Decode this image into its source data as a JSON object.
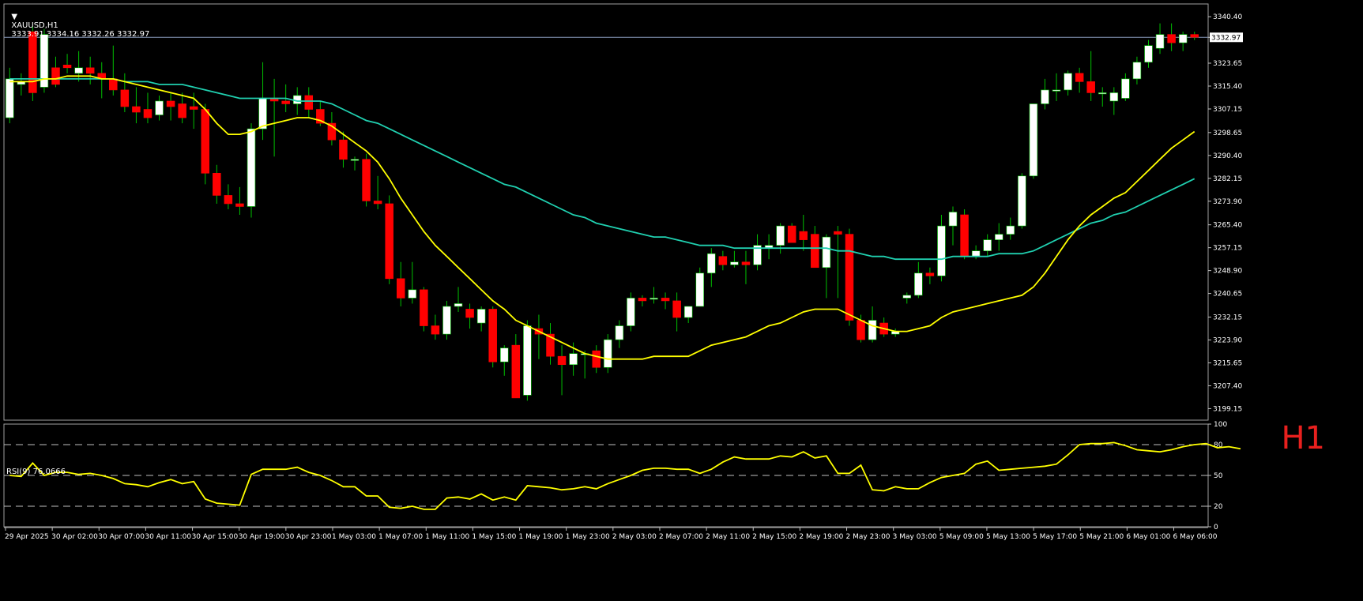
{
  "header": {
    "symbol": "XAUUSD,H1",
    "quotes": "3333.91 3334.16 3332.26 3332.97"
  },
  "rsi_header": "RSI(9) 76.0666",
  "watermark": "H1",
  "colors": {
    "background": "#000000",
    "bull_candle": "#ffffff",
    "bear_candle": "#ff0000",
    "wick": "#00c000",
    "ma_fast": "#ffff00",
    "ma_slow": "#20d0b0",
    "rsi_line": "#ffff00",
    "grid": "#c0c0c0",
    "price_line": "#8899bb"
  },
  "chart_data": [
    {
      "type": "candlestick",
      "symbol": "XAUUSD",
      "timeframe": "H1",
      "ylim": [
        3195,
        3345
      ],
      "y_ticks": [
        "3340.40",
        "3332.97",
        "3323.65",
        "3315.40",
        "3307.15",
        "3298.65",
        "3290.40",
        "3282.15",
        "3273.90",
        "3265.40",
        "3257.15",
        "3248.90",
        "3240.65",
        "3232.15",
        "3223.90",
        "3215.65",
        "3207.40",
        "3199.15"
      ],
      "current_price": "3332.97",
      "x_ticks": [
        "29 Apr 2025",
        "30 Apr 02:00",
        "30 Apr 07:00",
        "30 Apr 11:00",
        "30 Apr 15:00",
        "30 Apr 19:00",
        "30 Apr 23:00",
        "1 May 03:00",
        "1 May 07:00",
        "1 May 11:00",
        "1 May 15:00",
        "1 May 19:00",
        "1 May 23:00",
        "2 May 03:00",
        "2 May 07:00",
        "2 May 11:00",
        "2 May 15:00",
        "2 May 19:00",
        "2 May 23:00",
        "3 May 03:00",
        "5 May 09:00",
        "5 May 13:00",
        "5 May 17:00",
        "5 May 21:00",
        "6 May 01:00",
        "6 May 06:00"
      ],
      "candles": [
        {
          "o": 3304,
          "h": 3322,
          "l": 3302,
          "c": 3318
        },
        {
          "o": 3316,
          "h": 3320,
          "l": 3312,
          "c": 3317
        },
        {
          "o": 3335,
          "h": 3337,
          "l": 3310,
          "c": 3313
        },
        {
          "o": 3315,
          "h": 3336,
          "l": 3313,
          "c": 3334
        },
        {
          "o": 3322,
          "h": 3326,
          "l": 3315,
          "c": 3316
        },
        {
          "o": 3323,
          "h": 3327,
          "l": 3320,
          "c": 3322
        },
        {
          "o": 3320,
          "h": 3328,
          "l": 3317,
          "c": 3322
        },
        {
          "o": 3322,
          "h": 3326,
          "l": 3316,
          "c": 3320
        },
        {
          "o": 3320,
          "h": 3324,
          "l": 3311,
          "c": 3318
        },
        {
          "o": 3318,
          "h": 3330,
          "l": 3312,
          "c": 3314
        },
        {
          "o": 3314,
          "h": 3320,
          "l": 3306,
          "c": 3308
        },
        {
          "o": 3308,
          "h": 3315,
          "l": 3302,
          "c": 3306
        },
        {
          "o": 3307,
          "h": 3313,
          "l": 3302,
          "c": 3304
        },
        {
          "o": 3305,
          "h": 3312,
          "l": 3303,
          "c": 3310
        },
        {
          "o": 3310,
          "h": 3313,
          "l": 3303,
          "c": 3308
        },
        {
          "o": 3309,
          "h": 3313,
          "l": 3302,
          "c": 3304
        },
        {
          "o": 3308,
          "h": 3313,
          "l": 3300,
          "c": 3307
        },
        {
          "o": 3307,
          "h": 3309,
          "l": 3280,
          "c": 3284
        },
        {
          "o": 3284,
          "h": 3287,
          "l": 3273,
          "c": 3276
        },
        {
          "o": 3276,
          "h": 3280,
          "l": 3271,
          "c": 3273
        },
        {
          "o": 3273,
          "h": 3279,
          "l": 3269,
          "c": 3272
        },
        {
          "o": 3272,
          "h": 3302,
          "l": 3268,
          "c": 3300
        },
        {
          "o": 3300,
          "h": 3324,
          "l": 3296,
          "c": 3311
        },
        {
          "o": 3311,
          "h": 3318,
          "l": 3290,
          "c": 3310
        },
        {
          "o": 3310,
          "h": 3316,
          "l": 3306,
          "c": 3309
        },
        {
          "o": 3309,
          "h": 3315,
          "l": 3305,
          "c": 3312
        },
        {
          "o": 3312,
          "h": 3315,
          "l": 3304,
          "c": 3307
        },
        {
          "o": 3307,
          "h": 3310,
          "l": 3301,
          "c": 3302
        },
        {
          "o": 3302,
          "h": 3306,
          "l": 3294,
          "c": 3296
        },
        {
          "o": 3296,
          "h": 3299,
          "l": 3286,
          "c": 3289
        },
        {
          "o": 3289,
          "h": 3290,
          "l": 3285,
          "c": 3289
        },
        {
          "o": 3289,
          "h": 3291,
          "l": 3272,
          "c": 3274
        },
        {
          "o": 3274,
          "h": 3283,
          "l": 3271,
          "c": 3273
        },
        {
          "o": 3273,
          "h": 3276,
          "l": 3244,
          "c": 3246
        },
        {
          "o": 3246,
          "h": 3252,
          "l": 3236,
          "c": 3239
        },
        {
          "o": 3239,
          "h": 3252,
          "l": 3237,
          "c": 3242
        },
        {
          "o": 3242,
          "h": 3243,
          "l": 3227,
          "c": 3229
        },
        {
          "o": 3229,
          "h": 3233,
          "l": 3224,
          "c": 3226
        },
        {
          "o": 3226,
          "h": 3238,
          "l": 3224,
          "c": 3236
        },
        {
          "o": 3236,
          "h": 3243,
          "l": 3234,
          "c": 3237
        },
        {
          "o": 3235,
          "h": 3237,
          "l": 3228,
          "c": 3232
        },
        {
          "o": 3230,
          "h": 3236,
          "l": 3227,
          "c": 3235
        },
        {
          "o": 3235,
          "h": 3236,
          "l": 3214,
          "c": 3216
        },
        {
          "o": 3216,
          "h": 3222,
          "l": 3211,
          "c": 3221
        },
        {
          "o": 3222,
          "h": 3226,
          "l": 3203,
          "c": 3203
        },
        {
          "o": 3204,
          "h": 3231,
          "l": 3202,
          "c": 3229
        },
        {
          "o": 3228,
          "h": 3233,
          "l": 3217,
          "c": 3226
        },
        {
          "o": 3226,
          "h": 3230,
          "l": 3215,
          "c": 3218
        },
        {
          "o": 3218,
          "h": 3222,
          "l": 3204,
          "c": 3215
        },
        {
          "o": 3215,
          "h": 3223,
          "l": 3211,
          "c": 3219
        },
        {
          "o": 3219,
          "h": 3220,
          "l": 3210,
          "c": 3219
        },
        {
          "o": 3220,
          "h": 3222,
          "l": 3212,
          "c": 3214
        },
        {
          "o": 3214,
          "h": 3226,
          "l": 3212,
          "c": 3224
        },
        {
          "o": 3224,
          "h": 3231,
          "l": 3221,
          "c": 3229
        },
        {
          "o": 3229,
          "h": 3241,
          "l": 3227,
          "c": 3239
        },
        {
          "o": 3239,
          "h": 3240,
          "l": 3236,
          "c": 3238
        },
        {
          "o": 3239,
          "h": 3243,
          "l": 3237,
          "c": 3239
        },
        {
          "o": 3239,
          "h": 3241,
          "l": 3235,
          "c": 3238
        },
        {
          "o": 3238,
          "h": 3241,
          "l": 3227,
          "c": 3232
        },
        {
          "o": 3232,
          "h": 3236,
          "l": 3230,
          "c": 3236
        },
        {
          "o": 3236,
          "h": 3250,
          "l": 3236,
          "c": 3248
        },
        {
          "o": 3248,
          "h": 3257,
          "l": 3243,
          "c": 3255
        },
        {
          "o": 3254,
          "h": 3256,
          "l": 3249,
          "c": 3251
        },
        {
          "o": 3251,
          "h": 3256,
          "l": 3250,
          "c": 3252
        },
        {
          "o": 3252,
          "h": 3256,
          "l": 3244,
          "c": 3251
        },
        {
          "o": 3251,
          "h": 3262,
          "l": 3249,
          "c": 3258
        },
        {
          "o": 3257,
          "h": 3262,
          "l": 3253,
          "c": 3258
        },
        {
          "o": 3258,
          "h": 3266,
          "l": 3255,
          "c": 3265
        },
        {
          "o": 3265,
          "h": 3266,
          "l": 3259,
          "c": 3259
        },
        {
          "o": 3263,
          "h": 3269,
          "l": 3256,
          "c": 3260
        },
        {
          "o": 3262,
          "h": 3265,
          "l": 3250,
          "c": 3250
        },
        {
          "o": 3250,
          "h": 3262,
          "l": 3239,
          "c": 3261
        },
        {
          "o": 3263,
          "h": 3265,
          "l": 3239,
          "c": 3262
        },
        {
          "o": 3262,
          "h": 3264,
          "l": 3229,
          "c": 3231
        },
        {
          "o": 3231,
          "h": 3233,
          "l": 3223,
          "c": 3224
        },
        {
          "o": 3224,
          "h": 3236,
          "l": 3223,
          "c": 3231
        },
        {
          "o": 3230,
          "h": 3232,
          "l": 3225,
          "c": 3226
        },
        {
          "o": 3226,
          "h": 3228,
          "l": 3225,
          "c": 3227
        },
        {
          "o": 3239,
          "h": 3241,
          "l": 3237,
          "c": 3240
        },
        {
          "o": 3240,
          "h": 3252,
          "l": 3239,
          "c": 3248
        },
        {
          "o": 3248,
          "h": 3250,
          "l": 3244,
          "c": 3247
        },
        {
          "o": 3247,
          "h": 3269,
          "l": 3245,
          "c": 3265
        },
        {
          "o": 3265,
          "h": 3272,
          "l": 3258,
          "c": 3270
        },
        {
          "o": 3269,
          "h": 3271,
          "l": 3253,
          "c": 3254
        },
        {
          "o": 3254,
          "h": 3258,
          "l": 3253,
          "c": 3256
        },
        {
          "o": 3256,
          "h": 3262,
          "l": 3254,
          "c": 3260
        },
        {
          "o": 3260,
          "h": 3266,
          "l": 3256,
          "c": 3262
        },
        {
          "o": 3262,
          "h": 3268,
          "l": 3260,
          "c": 3265
        },
        {
          "o": 3265,
          "h": 3284,
          "l": 3264,
          "c": 3283
        },
        {
          "o": 3283,
          "h": 3309,
          "l": 3282,
          "c": 3309
        },
        {
          "o": 3309,
          "h": 3318,
          "l": 3307,
          "c": 3314
        },
        {
          "o": 3314,
          "h": 3320,
          "l": 3310,
          "c": 3314
        },
        {
          "o": 3314,
          "h": 3321,
          "l": 3312,
          "c": 3320
        },
        {
          "o": 3320,
          "h": 3322,
          "l": 3313,
          "c": 3317
        },
        {
          "o": 3317,
          "h": 3328,
          "l": 3310,
          "c": 3313
        },
        {
          "o": 3313,
          "h": 3315,
          "l": 3308,
          "c": 3313
        },
        {
          "o": 3310,
          "h": 3315,
          "l": 3305,
          "c": 3313
        },
        {
          "o": 3311,
          "h": 3320,
          "l": 3310,
          "c": 3318
        },
        {
          "o": 3318,
          "h": 3326,
          "l": 3316,
          "c": 3324
        },
        {
          "o": 3324,
          "h": 3332,
          "l": 3322,
          "c": 3330
        },
        {
          "o": 3329,
          "h": 3338,
          "l": 3327,
          "c": 3334
        },
        {
          "o": 3334,
          "h": 3338,
          "l": 3328,
          "c": 3331
        },
        {
          "o": 3331,
          "h": 3335,
          "l": 3328,
          "c": 3334
        },
        {
          "o": 3334,
          "h": 3335,
          "l": 3332,
          "c": 3333
        }
      ],
      "ma_fast": [
        3317,
        3317,
        3317,
        3318,
        3318,
        3319,
        3319,
        3319,
        3318,
        3318,
        3317,
        3316,
        3315,
        3314,
        3313,
        3312,
        3311,
        3307,
        3302,
        3298,
        3298,
        3299,
        3301,
        3302,
        3303,
        3304,
        3304,
        3303,
        3301,
        3298,
        3295,
        3292,
        3288,
        3282,
        3275,
        3269,
        3263,
        3258,
        3254,
        3250,
        3246,
        3242,
        3238,
        3235,
        3231,
        3229,
        3227,
        3225,
        3223,
        3221,
        3219,
        3218,
        3217,
        3217,
        3217,
        3217,
        3218,
        3218,
        3218,
        3218,
        3220,
        3222,
        3223,
        3224,
        3225,
        3227,
        3229,
        3230,
        3232,
        3234,
        3235,
        3235,
        3235,
        3233,
        3231,
        3229,
        3228,
        3227,
        3227,
        3228,
        3229,
        3232,
        3234,
        3235,
        3236,
        3237,
        3238,
        3239,
        3240,
        3243,
        3248,
        3254,
        3260,
        3265,
        3269,
        3272,
        3275,
        3277,
        3281,
        3285,
        3289,
        3293,
        3296,
        3299
      ],
      "ma_slow": [
        3318,
        3318,
        3318,
        3318,
        3318,
        3318,
        3318,
        3318,
        3318,
        3318,
        3317,
        3317,
        3317,
        3316,
        3316,
        3316,
        3315,
        3314,
        3313,
        3312,
        3311,
        3311,
        3311,
        3311,
        3311,
        3310,
        3310,
        3310,
        3309,
        3307,
        3305,
        3303,
        3302,
        3300,
        3298,
        3296,
        3294,
        3292,
        3290,
        3288,
        3286,
        3284,
        3282,
        3280,
        3279,
        3277,
        3275,
        3273,
        3271,
        3269,
        3268,
        3266,
        3265,
        3264,
        3263,
        3262,
        3261,
        3261,
        3260,
        3259,
        3258,
        3258,
        3258,
        3257,
        3257,
        3257,
        3257,
        3257,
        3257,
        3257,
        3257,
        3257,
        3256,
        3256,
        3255,
        3254,
        3254,
        3253,
        3253,
        3253,
        3253,
        3253,
        3254,
        3254,
        3254,
        3254,
        3255,
        3255,
        3255,
        3256,
        3258,
        3260,
        3262,
        3264,
        3266,
        3267,
        3269,
        3270,
        3272,
        3274,
        3276,
        3278,
        3280,
        3282
      ]
    },
    {
      "type": "line",
      "name": "RSI(9) 76.0666",
      "ylim": [
        0,
        100
      ],
      "y_ticks": [
        "100",
        "80",
        "50",
        "20",
        "0"
      ],
      "levels": [
        80,
        50,
        20
      ],
      "values": [
        50,
        49,
        62,
        50,
        53,
        53,
        51,
        52,
        50,
        47,
        42,
        41,
        39,
        43,
        46,
        42,
        44,
        27,
        23,
        22,
        21,
        51,
        56,
        56,
        56,
        58,
        53,
        50,
        45,
        39,
        39,
        30,
        30,
        19,
        18,
        20,
        17,
        17,
        28,
        29,
        27,
        32,
        26,
        29,
        26,
        40,
        39,
        38,
        36,
        37,
        39,
        37,
        42,
        46,
        50,
        55,
        57,
        57,
        56,
        56,
        52,
        56,
        63,
        68,
        66,
        66,
        66,
        69,
        68,
        73,
        67,
        69,
        52,
        52,
        60,
        36,
        35,
        39,
        37,
        37,
        43,
        48,
        50,
        52,
        61,
        64,
        55,
        56,
        57,
        58,
        59,
        61,
        70,
        80,
        81,
        81,
        82,
        79,
        75,
        74,
        73,
        75,
        78,
        80,
        81,
        77,
        78,
        76
      ]
    }
  ]
}
